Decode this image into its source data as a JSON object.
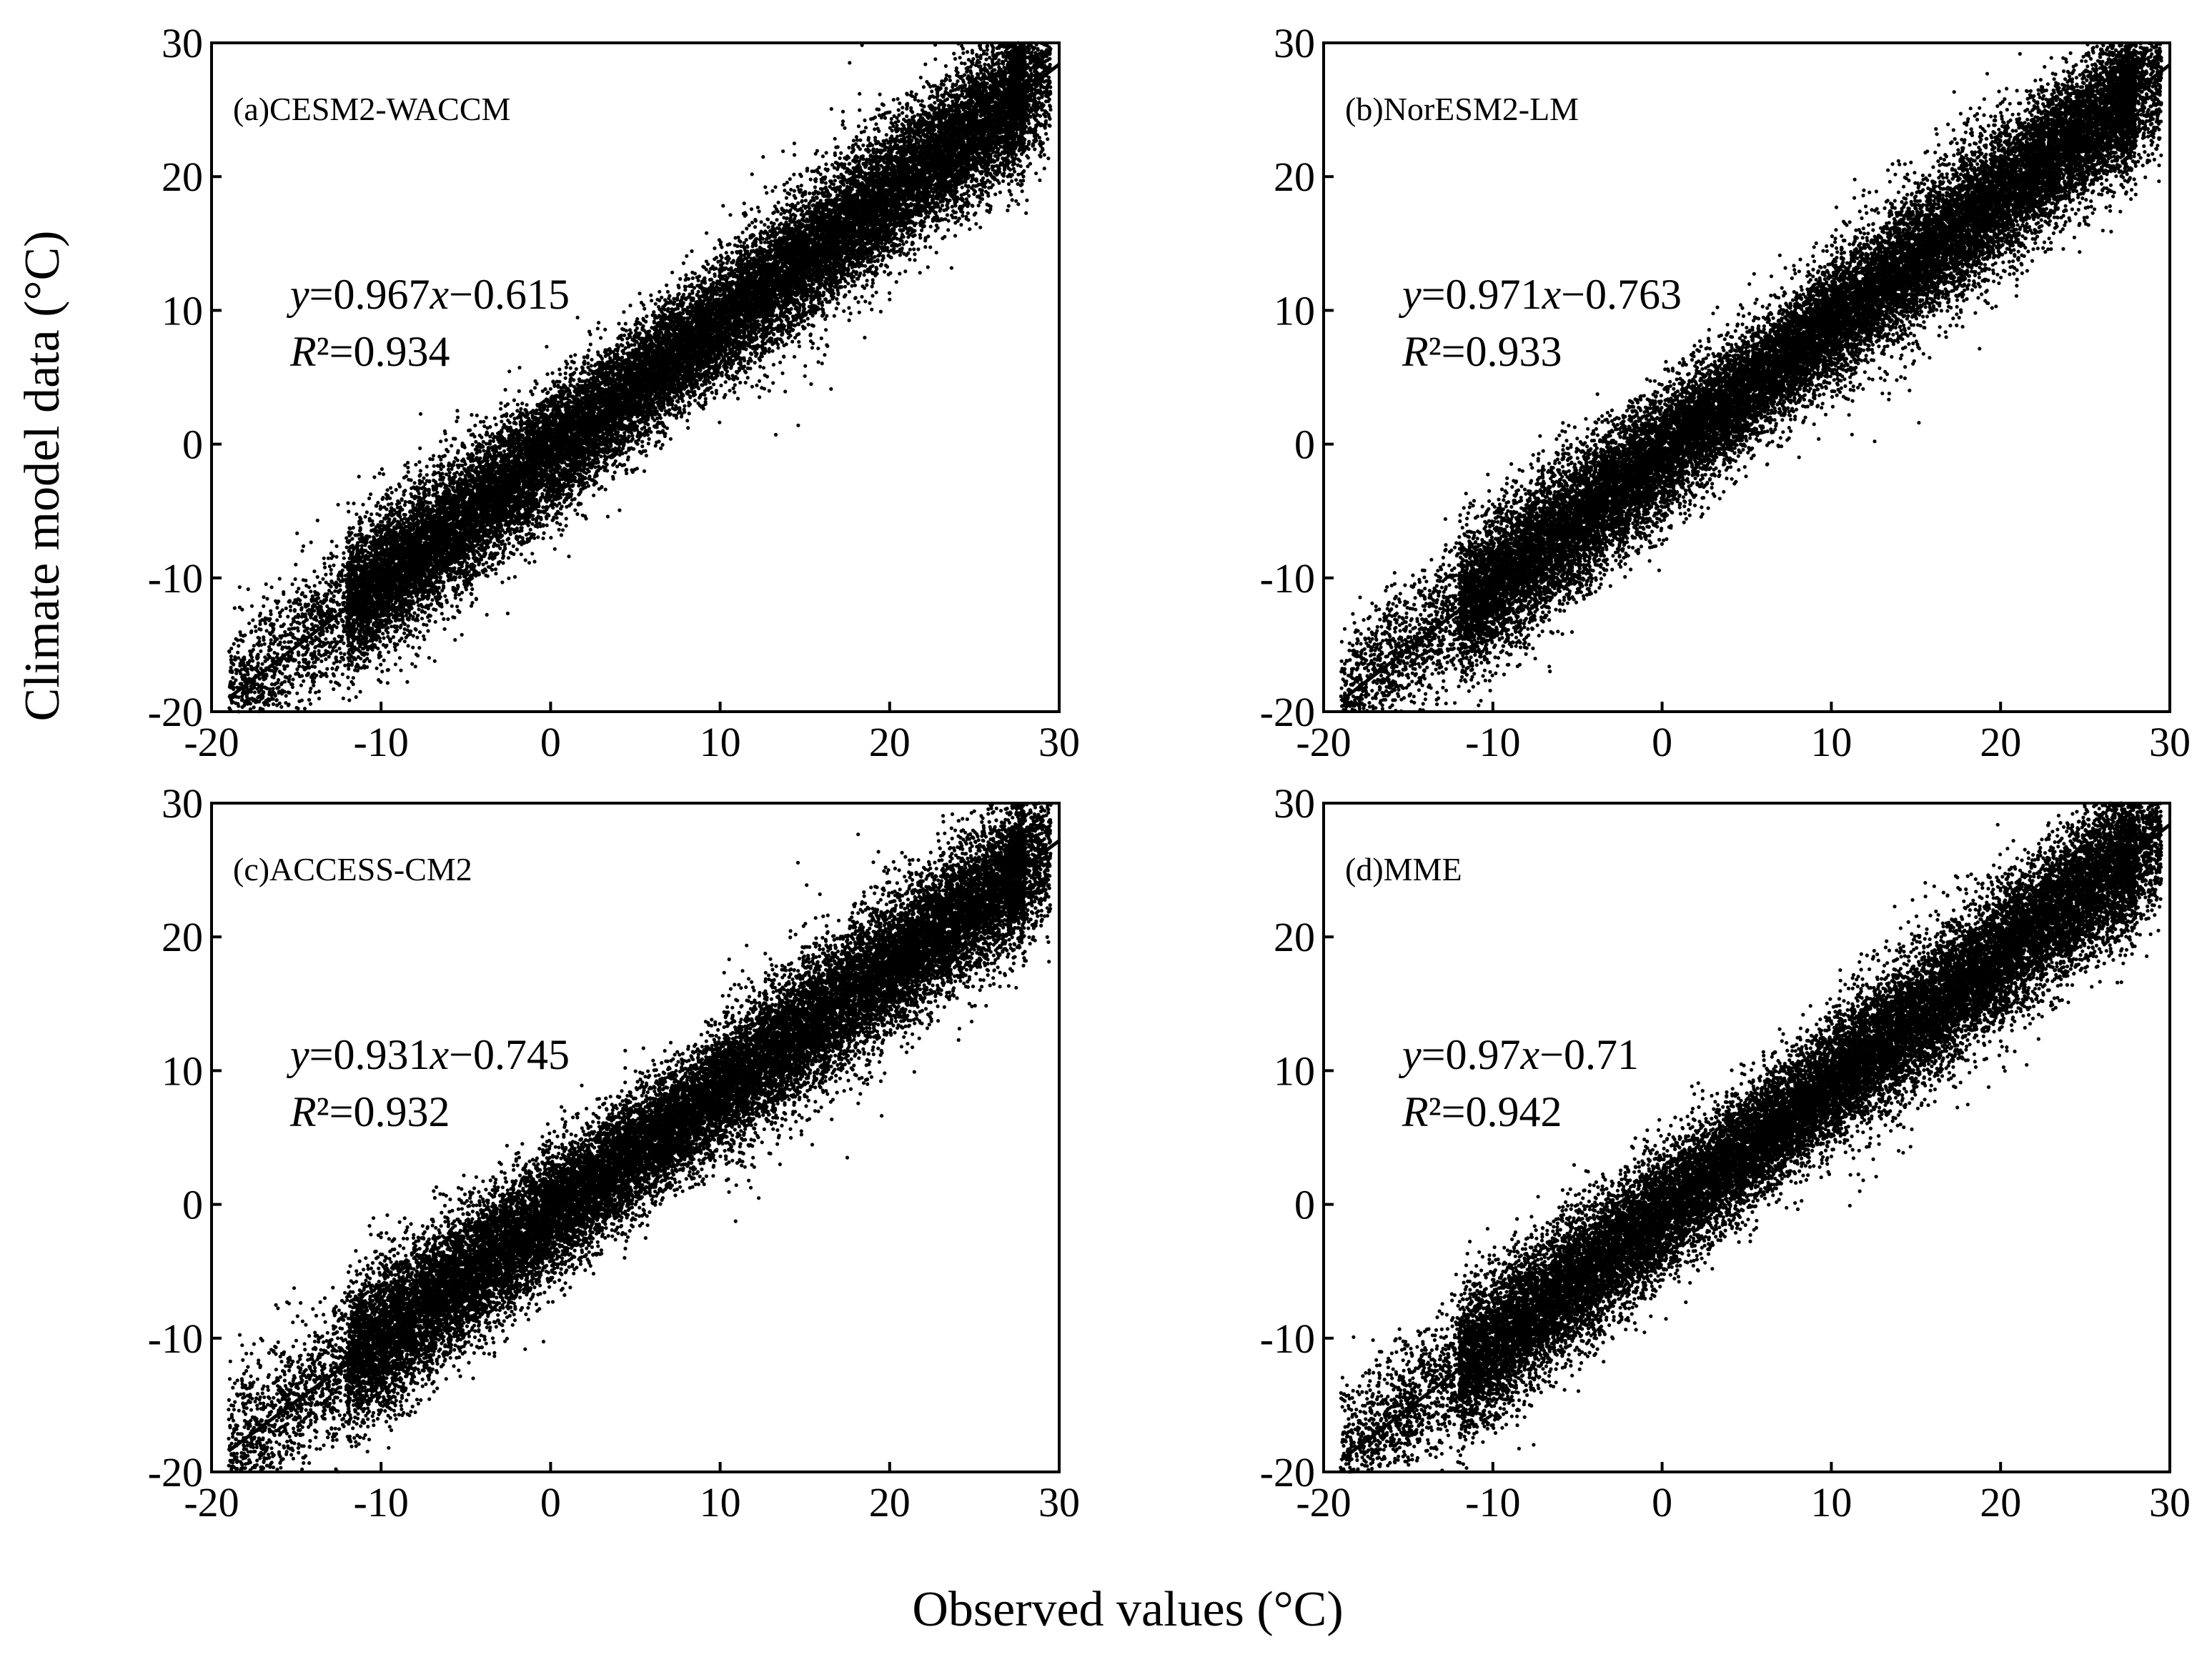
{
  "figure": {
    "ylabel": "Climate model data (°C)",
    "xlabel": "Observed values (°C)"
  },
  "chart_data": [
    {
      "type": "scatter",
      "title": "(a)CESM2-WACCM",
      "xlabel": "Observed values (°C)",
      "ylabel": "Climate model data (°C)",
      "xlim": [
        -20,
        30
      ],
      "ylim": [
        -20,
        30
      ],
      "xticks": [
        -20,
        -10,
        0,
        10,
        20,
        30
      ],
      "yticks": [
        -20,
        -10,
        0,
        10,
        20,
        30
      ],
      "xtick_labels": [
        "-20",
        "-10",
        "0",
        "10",
        "20",
        "30"
      ],
      "ytick_labels": [
        "-20",
        "-10",
        "0",
        "10",
        "20",
        "30"
      ],
      "fit": {
        "slope": 0.967,
        "intercept": -0.615,
        "x_range": [
          -19,
          30
        ]
      },
      "equation_text": {
        "y": "y",
        "eq1": "=0.967",
        "x": "x",
        "eq2": "−0.615",
        "r": "R",
        "r2": "²=0.934"
      },
      "r2": 0.934,
      "point_color": "#000000",
      "n_points": 26000,
      "seed": 11
    },
    {
      "type": "scatter",
      "title": "(b)NorESM2-LM",
      "xlabel": "Observed values (°C)",
      "ylabel": "Climate model data (°C)",
      "xlim": [
        -20,
        30
      ],
      "ylim": [
        -20,
        30
      ],
      "xticks": [
        -20,
        -10,
        0,
        10,
        20,
        30
      ],
      "yticks": [
        -20,
        -10,
        0,
        10,
        20,
        30
      ],
      "xtick_labels": [
        "-20",
        "-10",
        "0",
        "10",
        "20",
        "30"
      ],
      "ytick_labels": [
        "-20",
        "-10",
        "0",
        "10",
        "20",
        "30"
      ],
      "fit": {
        "slope": 0.971,
        "intercept": -0.763,
        "x_range": [
          -19,
          30
        ]
      },
      "equation_text": {
        "y": "y",
        "eq1": "=0.971",
        "x": "x",
        "eq2": "−0.763",
        "r": "R",
        "r2": "²=0.933"
      },
      "r2": 0.933,
      "point_color": "#000000",
      "n_points": 26000,
      "seed": 23
    },
    {
      "type": "scatter",
      "title": "(c)ACCESS-CM2",
      "xlabel": "Observed values (°C)",
      "ylabel": "Climate model data (°C)",
      "xlim": [
        -20,
        30
      ],
      "ylim": [
        -20,
        30
      ],
      "xticks": [
        -20,
        -10,
        0,
        10,
        20,
        30
      ],
      "yticks": [
        -20,
        -10,
        0,
        10,
        20,
        30
      ],
      "xtick_labels": [
        "-20",
        "-10",
        "0",
        "10",
        "20",
        "30"
      ],
      "ytick_labels": [
        "-20",
        "-10",
        "0",
        "10",
        "20",
        "30"
      ],
      "fit": {
        "slope": 0.931,
        "intercept": -0.745,
        "x_range": [
          -19,
          30
        ]
      },
      "equation_text": {
        "y": "y",
        "eq1": "=0.931",
        "x": "x",
        "eq2": "−0.745",
        "r": "R",
        "r2": "²=0.932"
      },
      "r2": 0.932,
      "point_color": "#000000",
      "n_points": 26000,
      "seed": 37
    },
    {
      "type": "scatter",
      "title": "(d)MME",
      "xlabel": "Observed values (°C)",
      "ylabel": "Climate model data (°C)",
      "xlim": [
        -20,
        30
      ],
      "ylim": [
        -20,
        30
      ],
      "xticks": [
        -20,
        -10,
        0,
        10,
        20,
        30
      ],
      "yticks": [
        -20,
        -10,
        0,
        10,
        20,
        30
      ],
      "xtick_labels": [
        "-20",
        "-10",
        "0",
        "10",
        "20",
        "30"
      ],
      "ytick_labels": [
        "-20",
        "-10",
        "0",
        "10",
        "20",
        "30"
      ],
      "fit": {
        "slope": 0.97,
        "intercept": -0.71,
        "x_range": [
          -19,
          30
        ]
      },
      "equation_text": {
        "y": "y",
        "eq1": "=0.97",
        "x": "x",
        "eq2": "−0.71",
        "r": "R",
        "r2": "²=0.942"
      },
      "r2": 0.942,
      "point_color": "#000000",
      "n_points": 26000,
      "seed": 53
    }
  ]
}
